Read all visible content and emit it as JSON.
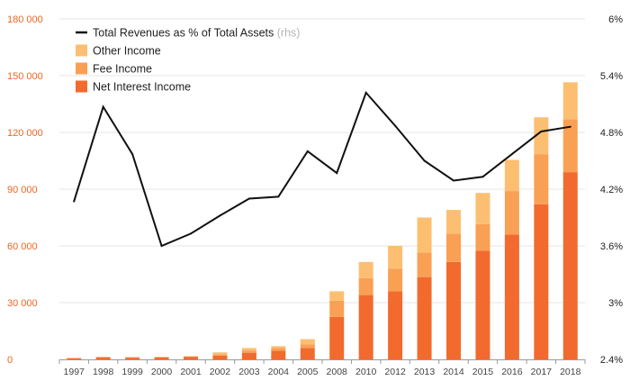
{
  "chart_data": {
    "type": "bar+line",
    "categories": [
      "1997",
      "1998",
      "1999",
      "2000",
      "2001",
      "2002",
      "2003",
      "2004",
      "2005",
      "2008",
      "2010",
      "2012",
      "2013",
      "2014",
      "2015",
      "2016",
      "2017",
      "2018"
    ],
    "series": [
      {
        "name": "Net Interest Income",
        "type": "bar",
        "axis": "left",
        "color": "#f26a2e",
        "values": [
          600,
          1000,
          900,
          1000,
          1200,
          2000,
          3500,
          4500,
          6000,
          22500,
          34000,
          36000,
          43500,
          51500,
          57500,
          66000,
          82000,
          99000
        ]
      },
      {
        "name": "Fee Income",
        "type": "bar",
        "axis": "left",
        "color": "#f9a054",
        "values": [
          100,
          200,
          200,
          200,
          300,
          700,
          1200,
          1500,
          2000,
          8500,
          9000,
          12000,
          13000,
          15000,
          14000,
          23000,
          26500,
          28000
        ]
      },
      {
        "name": "Other Income",
        "type": "bar",
        "axis": "left",
        "color": "#fcbf72",
        "values": [
          100,
          200,
          200,
          200,
          300,
          1000,
          1300,
          1000,
          2700,
          5000,
          8500,
          12000,
          18500,
          12500,
          16500,
          16500,
          19500,
          19500
        ]
      },
      {
        "name": "Total Revenues as % of Total Assets",
        "suffix": "(rhs)",
        "type": "line",
        "axis": "right",
        "color": "#111111",
        "values": [
          4.07,
          5.07,
          4.57,
          3.6,
          3.73,
          3.92,
          4.1,
          4.12,
          4.6,
          4.37,
          5.22,
          4.87,
          4.5,
          4.29,
          4.33,
          4.57,
          4.81,
          4.86
        ]
      }
    ],
    "legend_order": [
      "Total Revenues as % of Total Assets",
      "Other Income",
      "Fee Income",
      "Net Interest Income"
    ],
    "legend_position": "top-left",
    "y_left": {
      "min": 0,
      "max": 180000,
      "ticks": [
        0,
        30000,
        60000,
        90000,
        120000,
        150000,
        180000
      ],
      "tick_labels": [
        "0",
        "30 000",
        "60 000",
        "90 000",
        "120 000",
        "150 000",
        "180 000"
      ],
      "color": "#f26522"
    },
    "y_right": {
      "min": 2.4,
      "max": 6.0,
      "ticks": [
        2.4,
        3.0,
        3.6,
        4.2,
        4.8,
        5.4,
        6.0
      ],
      "tick_labels": [
        "2.4%",
        "3%",
        "3.6%",
        "4.2%",
        "4.8%",
        "5.4%",
        "6%"
      ],
      "color": "#222222"
    },
    "grid": true,
    "title": "",
    "xlabel": "",
    "ylabel": ""
  }
}
